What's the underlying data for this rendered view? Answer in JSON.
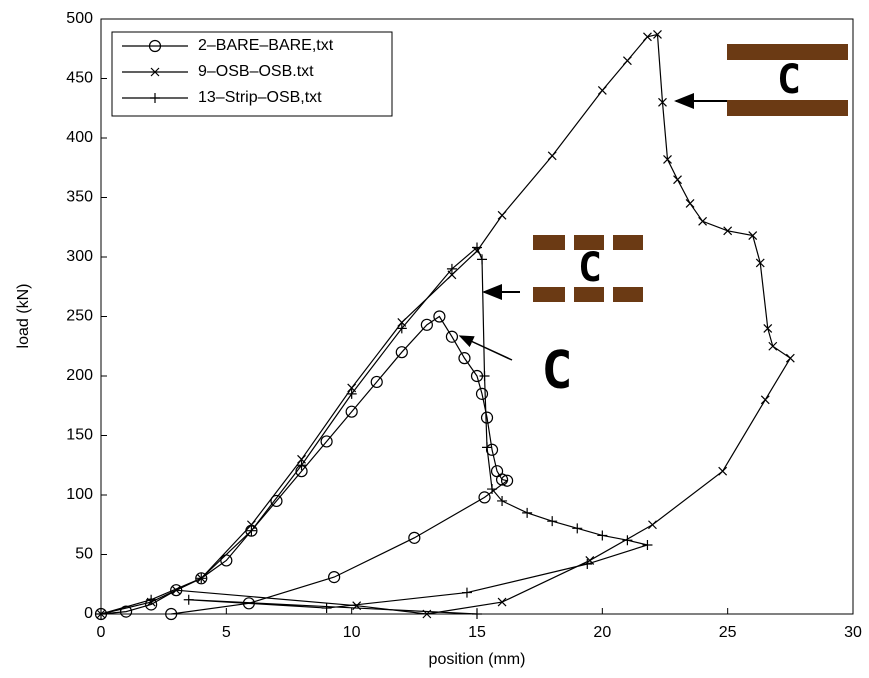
{
  "chart_data": {
    "type": "line",
    "xlabel": "position (mm)",
    "ylabel": "load (kN)",
    "xlim": [
      0,
      30
    ],
    "xticks": [
      0,
      5,
      10,
      15,
      20,
      25,
      30
    ],
    "ylim": [
      0,
      500
    ],
    "yticks": [
      0,
      50,
      100,
      150,
      200,
      250,
      300,
      350,
      400,
      450,
      500
    ],
    "legend": "upper left",
    "annotations": [
      "C",
      "C",
      "C"
    ],
    "series": [
      {
        "name": "2–BARE–BARE,txt",
        "color": "#000000",
        "marker": "o",
        "x": [
          0,
          1,
          2,
          3,
          4,
          5,
          6,
          7,
          8,
          9,
          10,
          11,
          12,
          13,
          13.5,
          14,
          14.5,
          15,
          15.2,
          15.4,
          15.6,
          15.8,
          16,
          16.2,
          15.3,
          12.5,
          9.3,
          5.9,
          2.8
        ],
        "values": [
          0,
          2,
          8,
          20,
          30,
          45,
          70,
          95,
          120,
          145,
          170,
          195,
          220,
          243,
          250,
          233,
          215,
          200,
          185,
          165,
          138,
          120,
          113,
          112,
          98,
          64,
          31,
          9,
          0
        ]
      },
      {
        "name": "9–OSB–OSB.txt",
        "color": "#000000",
        "marker": "x",
        "x": [
          0,
          2,
          4,
          6,
          8,
          10,
          12,
          14,
          15,
          16,
          18,
          20,
          21,
          21.8,
          22.2,
          22.4,
          22.6,
          23,
          23.5,
          24,
          25,
          26,
          26.3,
          26.6,
          26.8,
          27.5,
          26.5,
          24.8,
          22,
          19.5,
          16,
          13,
          10.2,
          3
        ],
        "values": [
          0,
          10,
          30,
          75,
          130,
          190,
          245,
          285,
          305,
          335,
          385,
          440,
          465,
          485,
          487,
          430,
          382,
          365,
          345,
          330,
          322,
          318,
          295,
          240,
          225,
          215,
          180,
          120,
          75,
          45,
          10,
          0,
          7,
          20
        ]
      },
      {
        "name": "13–Strip–OSB,txt",
        "color": "#000000",
        "marker": "+",
        "x": [
          0,
          2,
          4,
          6,
          8,
          10,
          12,
          14,
          15,
          15.2,
          15.3,
          15.4,
          15.6,
          16,
          17,
          18,
          19,
          20,
          21,
          21.8,
          19.4,
          14.6,
          9,
          3.5,
          15
        ],
        "values": [
          0,
          12,
          30,
          70,
          125,
          185,
          240,
          290,
          308,
          298,
          200,
          140,
          105,
          95,
          85,
          78,
          72,
          66,
          62,
          58,
          42,
          18,
          5,
          12,
          0
        ]
      }
    ]
  }
}
